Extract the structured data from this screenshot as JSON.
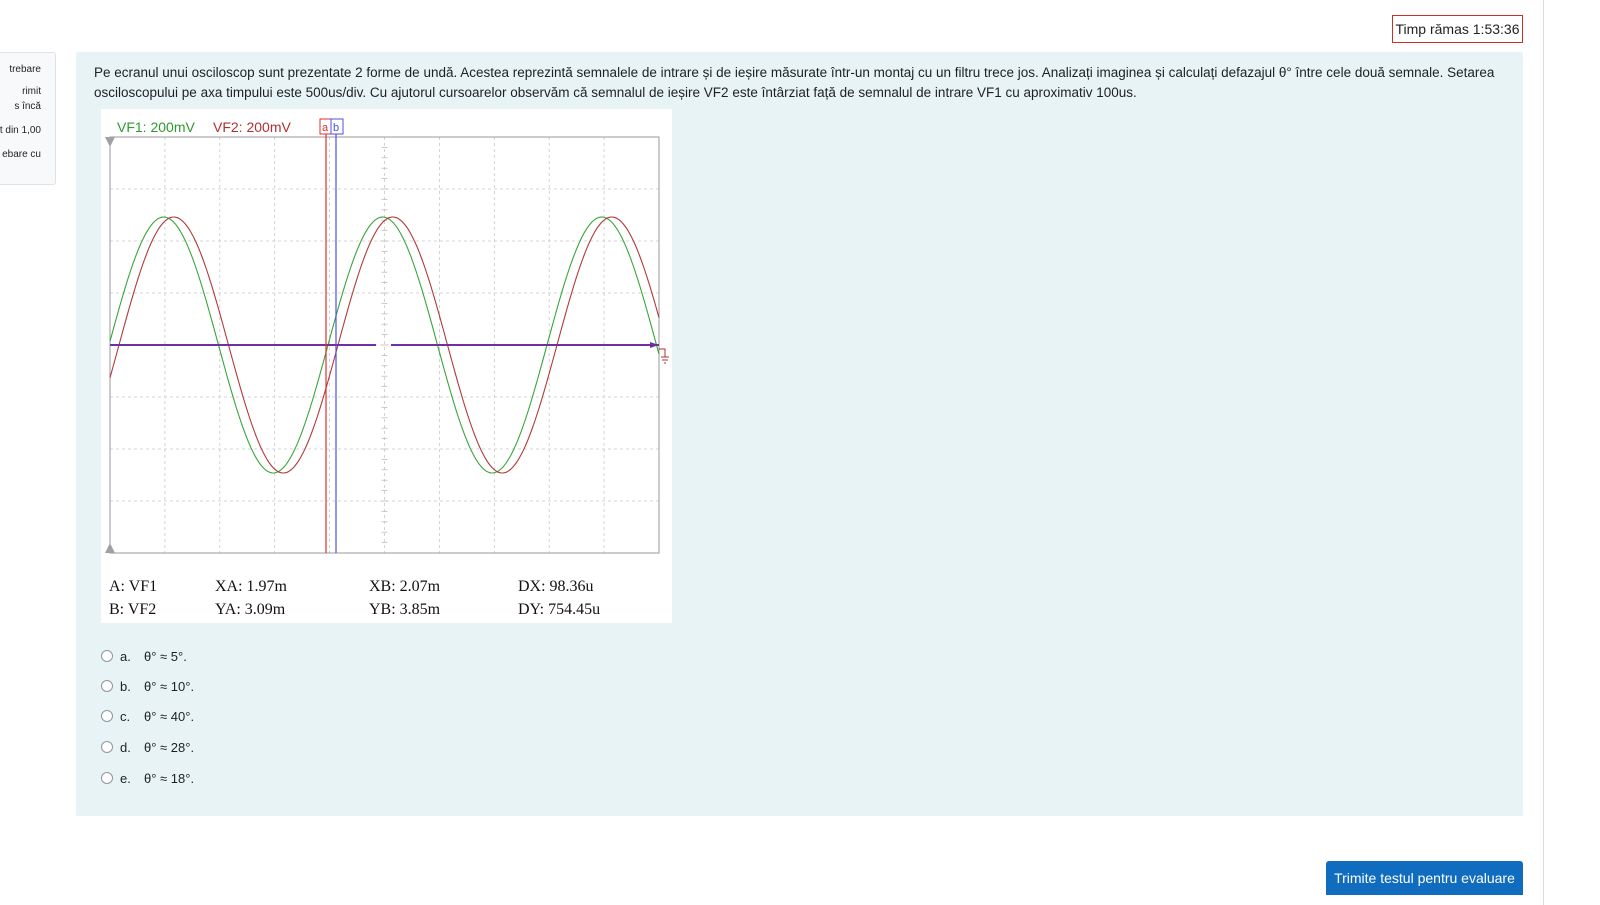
{
  "timer": {
    "label": "Timp rămas 1:53:36"
  },
  "question_info": {
    "lines": [
      "trebare",
      "rimit",
      "s încă",
      "t din 1,00",
      "ebare cu"
    ]
  },
  "question": {
    "text": "Pe ecranul unui osciloscop sunt prezentate 2 forme de undă. Acestea reprezintă semnalele de intrare și de ieșire măsurate într-un montaj cu un filtru trece jos. Analizați imaginea și calculați defazajul θ° între cele două semnale. Setarea osciloscopului pe axa timpului este 500us/div. Cu ajutorul cursoarelor observăm că semnalul de ieșire VF2 este întârziat față de semnalul de intrare VF1 cu aproximativ 100us."
  },
  "scope": {
    "ch1_label": "VF1: 200mV",
    "ch2_label": "VF2: 200mV",
    "cursor_a": "a",
    "cursor_b": "b",
    "colors": {
      "ch1": "#2e9a2e",
      "ch2": "#b03030",
      "cursor_a": "#e03030",
      "cursor_b": "#5050e0",
      "marker": "#7030a0"
    },
    "readout": {
      "row1": {
        "channel": "A: VF1",
        "x": "XA: 1.97m",
        "x2": "XB: 2.07m",
        "d": "DX: 98.36u"
      },
      "row2": {
        "channel": "B: VF2",
        "y": "YA: 3.09m",
        "y2": "YB: 3.85m",
        "d": "DY: 754.45u"
      }
    }
  },
  "answers": [
    {
      "letter": "a.",
      "text": "θ° ≈ 5°."
    },
    {
      "letter": "b.",
      "text": "θ° ≈ 10°."
    },
    {
      "letter": "c.",
      "text": "θ° ≈ 40°."
    },
    {
      "letter": "d.",
      "text": "θ° ≈ 28°."
    },
    {
      "letter": "e.",
      "text": "θ° ≈ 18°."
    }
  ],
  "submit": {
    "label": "Trimite testul pentru evaluare"
  }
}
